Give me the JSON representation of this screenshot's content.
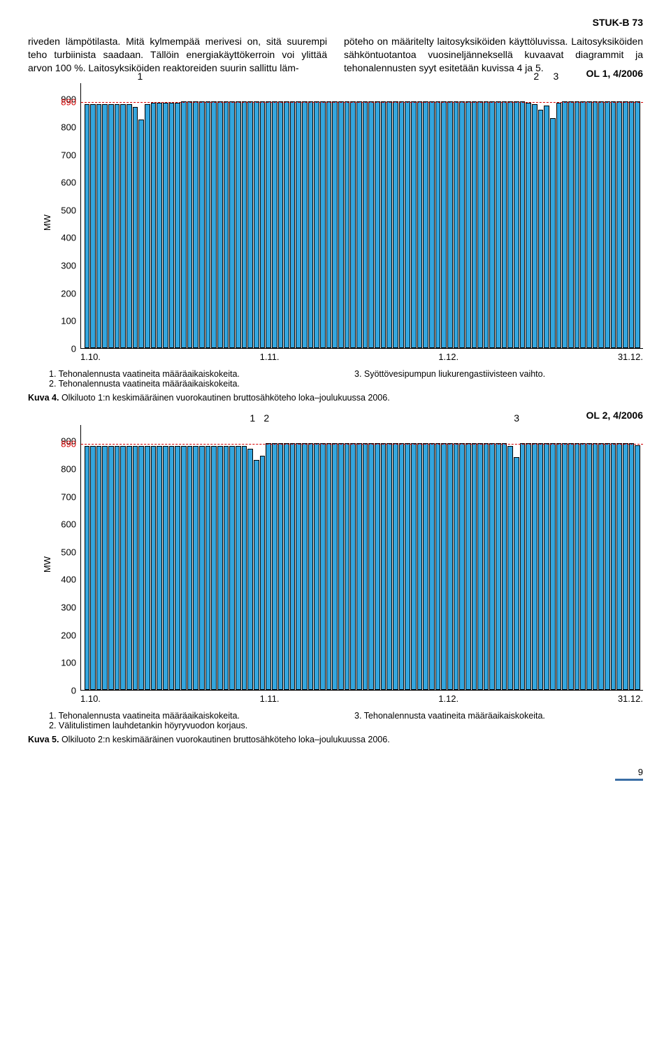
{
  "header": "STUK-B 73",
  "paragraph_left": "riveden lämpötilasta. Mitä kylmempää merivesi on, sitä suurempi teho turbiinista saadaan. Tällöin energiakäyttökerroin voi ylittää arvon 100 %. Laitosyksiköiden reaktoreiden suurin sallittu läm-",
  "paragraph_right": "pöteho on määritelty laitosyksiköiden käyttöluvissa. Laitosyksiköiden sähköntuotantoa vuosineljänneksellä kuvaavat diagrammit ja tehonalennusten syyt esitetään kuvissa 4 ja 5.",
  "chart1": {
    "title": "OL 1, 4/2006",
    "ylabel": "MW",
    "yticks": [
      900,
      800,
      700,
      600,
      500,
      400,
      300,
      200,
      100,
      0
    ],
    "y_accent": 890,
    "ymax_display": 960,
    "xticks": [
      "1.10.",
      "1.11.",
      "1.12.",
      "31.12."
    ],
    "bar_color": "#34a6de",
    "bar_border": "#000000",
    "dash_color": "#d40000",
    "dash_value": 890,
    "values": [
      880,
      880,
      880,
      880,
      880,
      880,
      880,
      880,
      870,
      825,
      880,
      885,
      885,
      885,
      885,
      885,
      890,
      890,
      890,
      890,
      890,
      890,
      890,
      890,
      890,
      890,
      890,
      890,
      890,
      890,
      890,
      890,
      890,
      890,
      890,
      890,
      890,
      890,
      890,
      890,
      890,
      890,
      890,
      890,
      890,
      890,
      890,
      890,
      890,
      890,
      890,
      890,
      890,
      890,
      890,
      890,
      890,
      890,
      890,
      890,
      890,
      890,
      890,
      890,
      890,
      890,
      890,
      890,
      890,
      890,
      890,
      890,
      890,
      885,
      880,
      860,
      875,
      830,
      885,
      890,
      890,
      890,
      890,
      890,
      890,
      890,
      890,
      890,
      890,
      890,
      890,
      890
    ],
    "annotations": [
      {
        "label": "1",
        "pos_pct": 10.5
      },
      {
        "label": "2",
        "pos_pct": 81
      },
      {
        "label": "3",
        "pos_pct": 84.5
      }
    ],
    "notes_left": "1. Tehonalennusta vaatineita määräaikaiskokeita.\n2. Tehonalennusta vaatineita määräaikaiskokeita.",
    "notes_right": "3. Syöttövesipumpun liukurengastiivisteen vaihto.",
    "caption_bold": "Kuva 4.",
    "caption_text": " Olkiluoto 1:n keskimääräinen vuorokautinen bruttosähköteho loka–joulukuussa 2006."
  },
  "chart2": {
    "title": "OL 2, 4/2006",
    "ylabel": "MW",
    "yticks": [
      900,
      800,
      700,
      600,
      500,
      400,
      300,
      200,
      100,
      0
    ],
    "y_accent": 890,
    "ymax_display": 960,
    "xticks": [
      "1.10.",
      "1.11.",
      "1.12.",
      "31.12."
    ],
    "bar_color": "#34a6de",
    "bar_border": "#000000",
    "dash_color": "#d40000",
    "dash_value": 890,
    "values": [
      880,
      880,
      880,
      880,
      880,
      880,
      880,
      880,
      880,
      880,
      880,
      880,
      880,
      880,
      880,
      880,
      880,
      880,
      880,
      880,
      880,
      880,
      880,
      880,
      880,
      880,
      880,
      870,
      830,
      845,
      890,
      890,
      890,
      890,
      890,
      890,
      890,
      890,
      890,
      890,
      890,
      890,
      890,
      890,
      890,
      890,
      890,
      890,
      890,
      890,
      890,
      890,
      890,
      890,
      890,
      890,
      890,
      890,
      890,
      890,
      890,
      890,
      890,
      890,
      890,
      890,
      890,
      890,
      890,
      890,
      880,
      840,
      890,
      890,
      890,
      890,
      890,
      890,
      890,
      890,
      890,
      890,
      890,
      890,
      890,
      890,
      890,
      890,
      890,
      890,
      890,
      883
    ],
    "annotations": [
      {
        "label": "1",
        "pos_pct": 30.5
      },
      {
        "label": "2",
        "pos_pct": 33
      },
      {
        "label": "3",
        "pos_pct": 77.5
      }
    ],
    "notes_left": "1. Tehonalennusta vaatineita määräaikaiskokeita.\n2. Välitulistimen lauhdetankin höyryvuodon korjaus.",
    "notes_right": "3. Tehonalennusta vaatineita määräaikaiskokeita.",
    "caption_bold": "Kuva 5.",
    "caption_text": " Olkiluoto 2:n keskimääräinen vuorokautinen bruttosähköteho loka–joulukuussa 2006."
  },
  "page_number": "9"
}
